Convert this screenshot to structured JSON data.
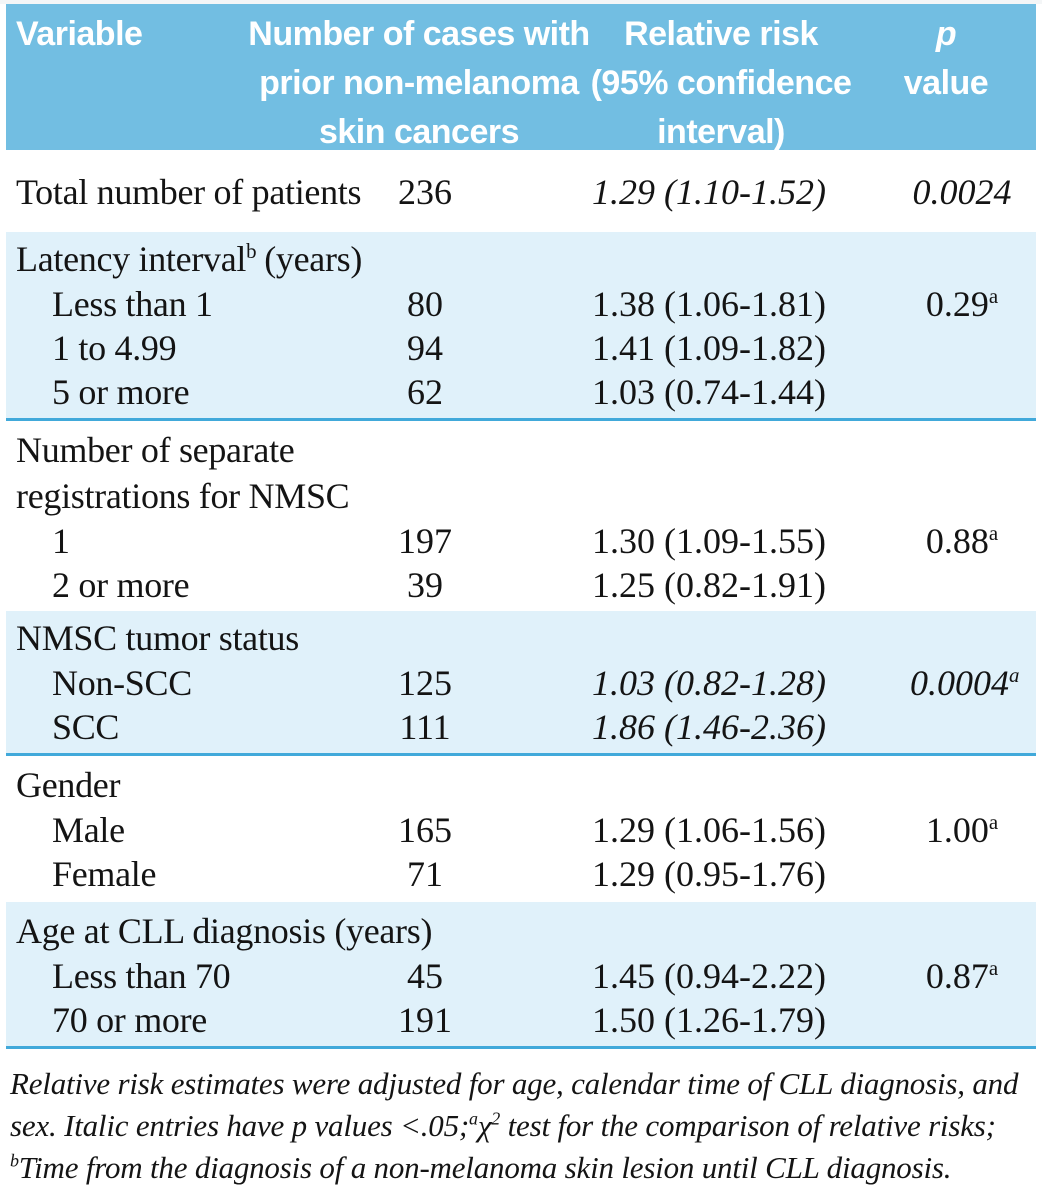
{
  "colors": {
    "header_bg": "#72BEE2",
    "header_text": "#FFFFFF",
    "band_bg": "#E0F1FA",
    "divider": "#41A9DA",
    "text": "#141414"
  },
  "header": {
    "col1": "Variable",
    "col2": "Number of cases with\nprior non-melanoma\nskin cancers",
    "col3": "Relative risk\n(95% confidence\ninterval)",
    "col4_line1": "p",
    "col4_line2": "value"
  },
  "sections": [
    {
      "rows": [
        {
          "label": "Total number of patients",
          "cases": "236",
          "rr": "1.29 (1.10-1.52)",
          "p": "0.0024",
          "p_sup": ""
        }
      ]
    },
    {
      "title": "Latency interval",
      "title_sup": "b",
      "title_post": "(years)",
      "rows": [
        {
          "label": "Less than 1",
          "cases": "80",
          "rr": "1.38 (1.06-1.81)",
          "p": "0.29",
          "p_sup": "a"
        },
        {
          "label": "1 to 4.99",
          "cases": "94",
          "rr": "1.41 (1.09-1.82)",
          "p": "",
          "p_sup": ""
        },
        {
          "label": "5 or more",
          "cases": "62",
          "rr": "1.03 (0.74-1.44)",
          "p": "",
          "p_sup": ""
        }
      ]
    },
    {
      "title": "Number of separate registrations for NMSC",
      "rows": [
        {
          "label": "1",
          "cases": "197",
          "rr": "1.30 (1.09-1.55)",
          "p": "0.88",
          "p_sup": "a"
        },
        {
          "label": "2 or more",
          "cases": "39",
          "rr": "1.25 (0.82-1.91)",
          "p": "",
          "p_sup": ""
        }
      ]
    },
    {
      "title": "NMSC tumor status",
      "rows": [
        {
          "label": "Non-SCC",
          "cases": "125",
          "rr": "1.03 (0.82-1.28)",
          "p": "0.0004",
          "p_sup": "a"
        },
        {
          "label": "SCC",
          "cases": "111",
          "rr": "1.86 (1.46-2.36)",
          "p": "",
          "p_sup": ""
        }
      ]
    },
    {
      "title": "Gender",
      "rows": [
        {
          "label": "Male",
          "cases": "165",
          "rr": "1.29 (1.06-1.56)",
          "p": "1.00",
          "p_sup": "a"
        },
        {
          "label": "Female",
          "cases": "71",
          "rr": "1.29 (0.95-1.76)",
          "p": "",
          "p_sup": ""
        }
      ]
    },
    {
      "title": "Age at CLL diagnosis (years)",
      "rows": [
        {
          "label": "Less than 70",
          "cases": "45",
          "rr": "1.45 (0.94-2.22)",
          "p": "0.87",
          "p_sup": "a"
        },
        {
          "label": "70 or more",
          "cases": "191",
          "rr": "1.50 (1.26-1.79)",
          "p": "",
          "p_sup": ""
        }
      ]
    }
  ],
  "footnote": {
    "line1": "Relative risk estimates were adjusted for age, calendar time of CLL diagnosis, and",
    "line2_pre": "sex. Italic entries have p values <.05;",
    "line2_sup_a": "a",
    "line2_chi": "χ",
    "line2_sup_2": "2",
    "line2_post": " test for the comparison of relative risks;",
    "line3_sup": "b",
    "line3_text": "Time from the diagnosis of a non-melanoma skin lesion until CLL diagnosis."
  }
}
